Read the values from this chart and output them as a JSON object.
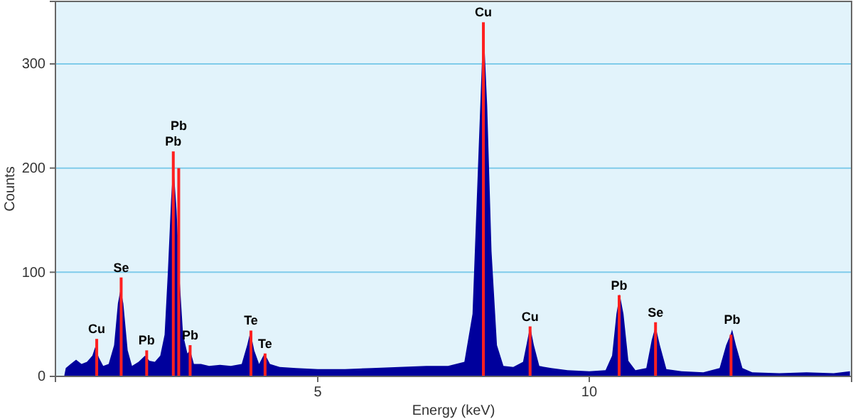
{
  "chart_data": {
    "type": "area",
    "xlabel": "Energy (keV)",
    "ylabel": "Counts",
    "xlim": [
      0.17,
      14.83
    ],
    "ylim": [
      0,
      360
    ],
    "xticks": [
      5,
      10
    ],
    "yticks": [
      0,
      100,
      200,
      300
    ],
    "grid": "y",
    "series": [
      {
        "color": "#00009c",
        "x": [
          0.33,
          0.36,
          0.45,
          0.55,
          0.65,
          0.75,
          0.85,
          0.9,
          0.97,
          1.05,
          1.15,
          1.25,
          1.32,
          1.37,
          1.42,
          1.5,
          1.58,
          1.7,
          1.82,
          1.9,
          2.0,
          2.1,
          2.18,
          2.24,
          2.3,
          2.34,
          2.4,
          2.46,
          2.52,
          2.6,
          2.65,
          2.72,
          2.85,
          3.0,
          3.2,
          3.4,
          3.6,
          3.7,
          3.76,
          3.83,
          3.92,
          4.02,
          4.12,
          4.3,
          4.6,
          5.0,
          5.5,
          6.0,
          6.5,
          7.0,
          7.4,
          7.7,
          7.85,
          7.95,
          8.05,
          8.12,
          8.2,
          8.3,
          8.42,
          8.6,
          8.78,
          8.85,
          8.91,
          8.98,
          9.08,
          9.3,
          9.6,
          10.0,
          10.3,
          10.42,
          10.5,
          10.56,
          10.63,
          10.72,
          10.85,
          11.05,
          11.15,
          11.22,
          11.3,
          11.42,
          11.7,
          12.1,
          12.4,
          12.52,
          12.6,
          12.63,
          12.7,
          12.82,
          13.0,
          13.5,
          14.0,
          14.5,
          14.8
        ],
        "values": [
          0,
          8,
          12,
          16,
          12,
          14,
          20,
          28,
          18,
          10,
          12,
          30,
          70,
          84,
          70,
          25,
          10,
          14,
          20,
          15,
          14,
          20,
          40,
          100,
          170,
          204,
          160,
          90,
          40,
          22,
          25,
          12,
          12,
          10,
          11,
          10,
          12,
          30,
          43,
          25,
          12,
          22,
          12,
          9,
          8,
          7,
          7,
          8,
          9,
          10,
          10,
          14,
          60,
          200,
          340,
          260,
          120,
          30,
          10,
          9,
          14,
          32,
          48,
          30,
          10,
          8,
          6,
          5,
          6,
          20,
          60,
          79,
          60,
          15,
          6,
          8,
          35,
          48,
          30,
          7,
          5,
          4,
          8,
          30,
          40,
          45,
          30,
          8,
          4,
          3,
          4,
          3,
          5
        ]
      },
      {
        "type": "bar",
        "color": "#ff2020",
        "x": [
          0.93,
          1.38,
          1.85,
          2.34,
          2.44,
          2.65,
          3.77,
          4.03,
          8.05,
          8.91,
          10.55,
          11.22,
          12.61
        ],
        "values": [
          36,
          95,
          25,
          216,
          200,
          30,
          44,
          22,
          340,
          48,
          78,
          52,
          40
        ]
      }
    ],
    "annotations": [
      {
        "text": "Cu",
        "x": 0.93,
        "y": 36
      },
      {
        "text": "Se",
        "x": 1.38,
        "y": 95
      },
      {
        "text": "Pb",
        "x": 1.85,
        "y": 25
      },
      {
        "text": "Pb",
        "x": 2.34,
        "y": 216
      },
      {
        "text": "Pb",
        "x": 2.44,
        "y": 200
      },
      {
        "text": "Pb",
        "x": 2.65,
        "y": 30
      },
      {
        "text": "Te",
        "x": 3.77,
        "y": 44
      },
      {
        "text": "Te",
        "x": 4.03,
        "y": 22
      },
      {
        "text": "Cu",
        "x": 8.05,
        "y": 340
      },
      {
        "text": "Cu",
        "x": 8.91,
        "y": 48
      },
      {
        "text": "Pb",
        "x": 10.55,
        "y": 78
      },
      {
        "text": "Se",
        "x": 11.22,
        "y": 52
      },
      {
        "text": "Pb",
        "x": 12.63,
        "y": 45
      }
    ]
  }
}
